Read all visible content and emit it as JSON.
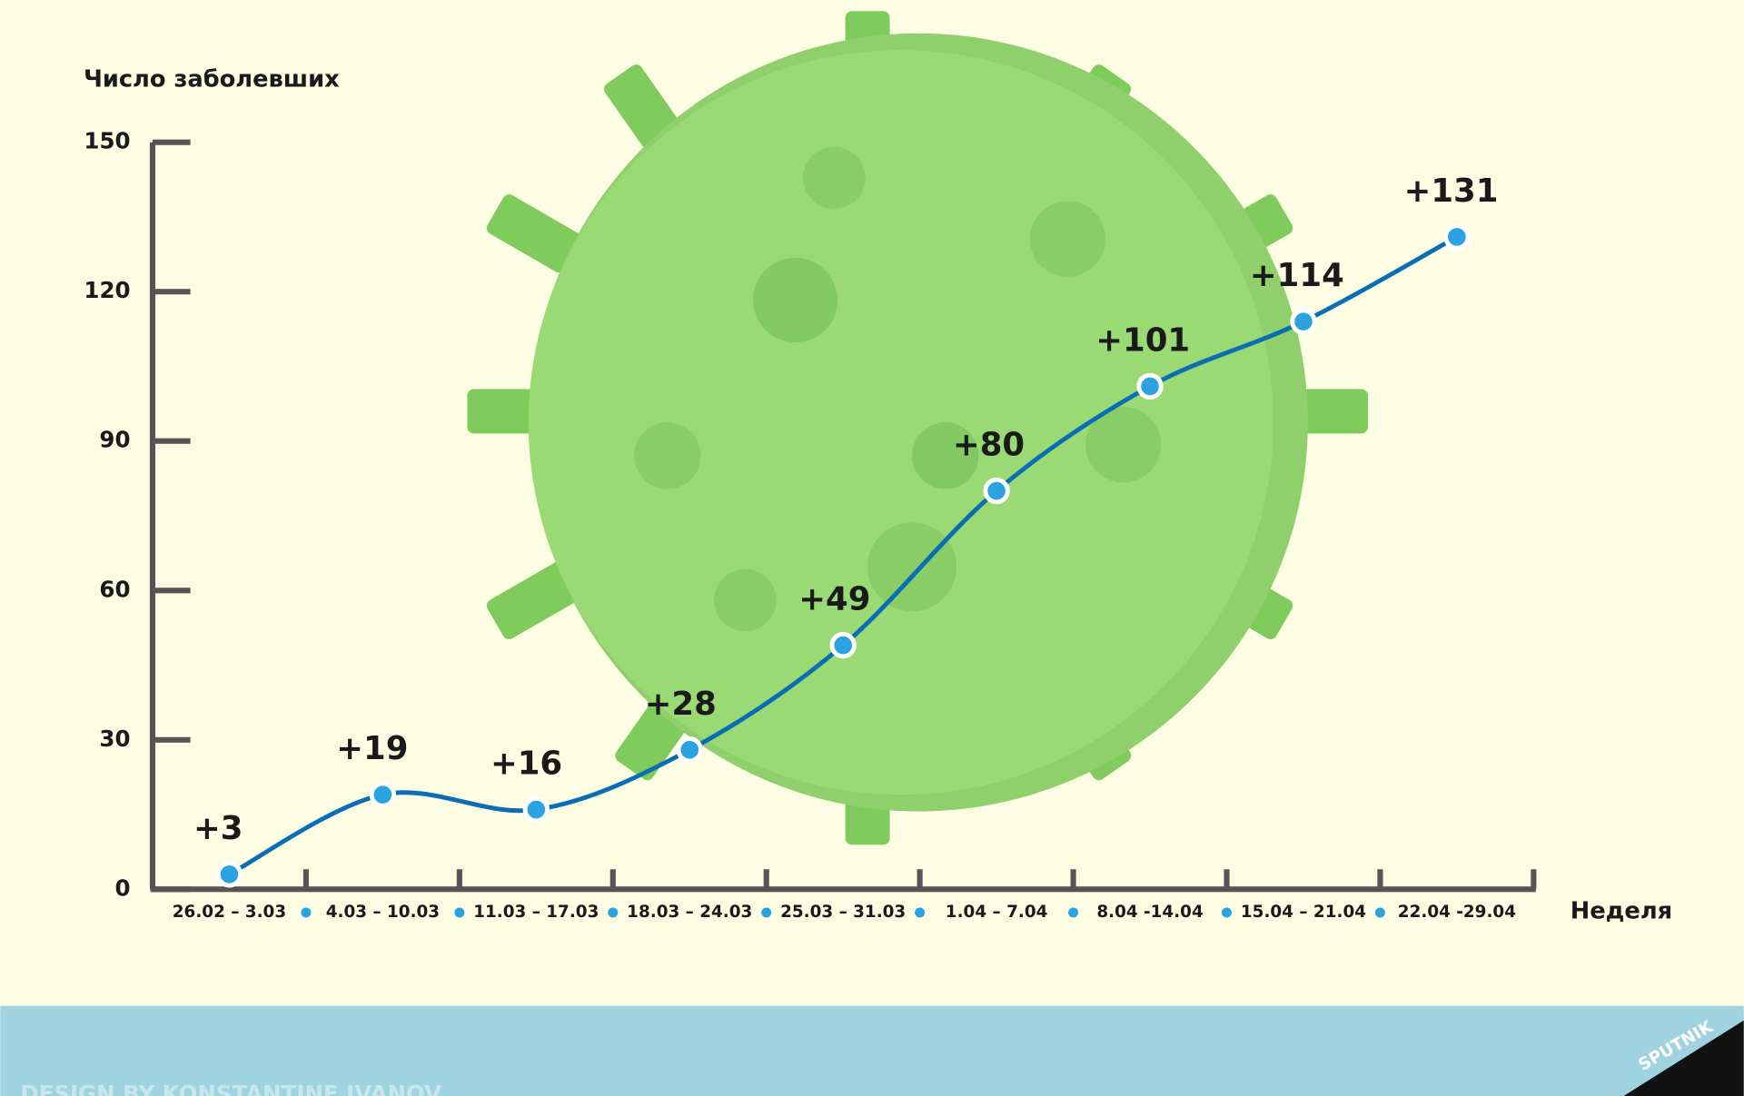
{
  "chart_data": {
    "type": "line",
    "y_label": "Число заболевших",
    "x_label": "Неделя",
    "categories": [
      "26.02 – 3.03",
      "4.03 – 10.03",
      "11.03 – 17.03",
      "18.03 – 24.03",
      "25.03 – 31.03",
      "1.04 – 7.04",
      "8.04 -14.04",
      "15.04 – 21.04",
      "22.04 -29.04"
    ],
    "values": [
      3,
      19,
      16,
      28,
      49,
      80,
      101,
      114,
      131
    ],
    "value_labels": [
      "+3",
      "+19",
      "+16",
      "+28",
      "+49",
      "+80",
      "+101",
      "+114",
      "+131"
    ],
    "color": "#0b6db3",
    "marker_color": "#2aa3e0",
    "ylim": [
      0,
      150
    ],
    "yticks": [
      0,
      30,
      60,
      90,
      120,
      150
    ],
    "credit": "DESIGN BY KONSTANTINE IVANOV",
    "logo": "SPUTNIK"
  }
}
